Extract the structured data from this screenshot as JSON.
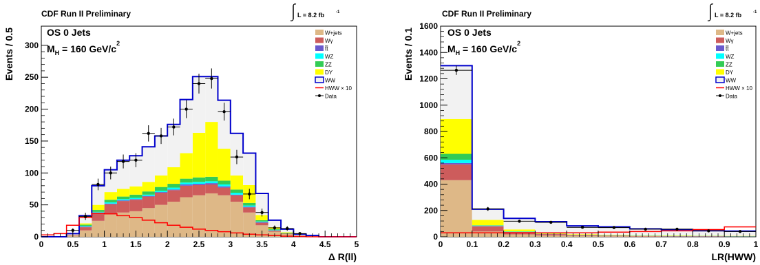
{
  "header": {
    "experiment": "CDF Run II Preliminary",
    "luminosity": "L = 8.2 fb"
  },
  "colors": {
    "W+jets": "#deb887",
    "Wγ": "#cd5c5c",
    "tt": "#6a5acd",
    "WZ": "#00ffff",
    "ZZ": "#33cc55",
    "DY": "#ffff00",
    "WW_fill": "#f2f2f2",
    "WW_line": "#0000cc",
    "HWW": "#ff0000",
    "Data": "#000000"
  },
  "chart_data": [
    {
      "type": "bar",
      "title": "OS 0 Jets",
      "subtitle": "M_H = 160 GeV/c^2",
      "xlabel": "Δ R(ll)",
      "ylabel": "Events / 0.5",
      "xlim": [
        0,
        5
      ],
      "ylim": [
        0,
        330
      ],
      "xticks": [
        0,
        0.5,
        1,
        1.5,
        2,
        2.5,
        3,
        3.5,
        4,
        4.5,
        5
      ],
      "yticks": [
        0,
        50,
        100,
        150,
        200,
        250,
        300
      ],
      "bin_edges": [
        0,
        0.2,
        0.4,
        0.6,
        0.8,
        1.0,
        1.2,
        1.4,
        1.6,
        1.8,
        2.0,
        2.2,
        2.4,
        2.6,
        2.8,
        3.0,
        3.2,
        3.4,
        3.6,
        3.8,
        4.0,
        4.2,
        4.4,
        4.6,
        4.8,
        5.0
      ],
      "stacked": [
        {
          "name": "W+jets",
          "values": [
            0,
            0,
            2,
            10,
            25,
            35,
            38,
            40,
            45,
            50,
            55,
            62,
            65,
            68,
            65,
            55,
            38,
            18,
            8,
            4,
            2,
            1,
            0,
            0,
            0
          ]
        },
        {
          "name": "Wγ",
          "values": [
            0,
            0,
            1,
            5,
            12,
            16,
            18,
            18,
            18,
            19,
            18,
            18,
            16,
            14,
            12,
            10,
            8,
            4,
            2,
            1,
            0,
            0,
            0,
            0,
            0
          ]
        },
        {
          "name": "tt",
          "values": [
            0,
            0,
            0,
            1,
            1,
            1,
            1,
            1,
            1,
            1,
            1,
            2,
            2,
            2,
            2,
            1,
            1,
            1,
            0,
            0,
            0,
            0,
            0,
            0,
            0
          ]
        },
        {
          "name": "WZ",
          "values": [
            0,
            0,
            0,
            1,
            1,
            2,
            2,
            2,
            2,
            2,
            3,
            3,
            3,
            3,
            3,
            3,
            2,
            1,
            1,
            0,
            0,
            0,
            0,
            0,
            0
          ]
        },
        {
          "name": "ZZ",
          "values": [
            0,
            0,
            0,
            2,
            3,
            4,
            4,
            5,
            5,
            6,
            6,
            6,
            7,
            7,
            6,
            5,
            4,
            2,
            1,
            1,
            0,
            0,
            0,
            0,
            0
          ]
        },
        {
          "name": "DY",
          "values": [
            0,
            0,
            0,
            2,
            8,
            12,
            12,
            13,
            15,
            18,
            26,
            40,
            70,
            86,
            50,
            22,
            28,
            8,
            3,
            1,
            0,
            0,
            0,
            0,
            0
          ]
        },
        {
          "name": "WW",
          "values": [
            0,
            0,
            2,
            12,
            30,
            35,
            45,
            48,
            55,
            62,
            67,
            84,
            88,
            71,
            76,
            66,
            50,
            34,
            11,
            5,
            2,
            1,
            0,
            0,
            0
          ]
        }
      ],
      "hww_x10": [
        3,
        5,
        18,
        30,
        37,
        36,
        33,
        30,
        26,
        22,
        18,
        15,
        12,
        10,
        8,
        6,
        4,
        3,
        2,
        1,
        0.5,
        0,
        0,
        0,
        0
      ],
      "data": {
        "x": [
          0.5,
          0.7,
          0.9,
          1.1,
          1.3,
          1.5,
          1.7,
          1.9,
          2.1,
          2.3,
          2.5,
          2.7,
          2.9,
          3.1,
          3.3,
          3.5,
          3.7,
          3.9,
          4.1
        ],
        "y": [
          10,
          32,
          82,
          100,
          118,
          120,
          162,
          158,
          172,
          200,
          240,
          248,
          196,
          125,
          67,
          38,
          14,
          13,
          5
        ]
      },
      "legend": [
        "W+jets",
        "Wγ",
        "tt",
        "WZ",
        "ZZ",
        "DY",
        "WW",
        "HWW × 10",
        "Data"
      ],
      "legend_position": "top-right"
    },
    {
      "type": "bar",
      "title": "OS 0 Jets",
      "subtitle": "M_H = 160 GeV/c^2",
      "xlabel": "LR(HWW)",
      "ylabel": "Events / 0.1",
      "xlim": [
        0,
        1
      ],
      "ylim": [
        0,
        1600
      ],
      "xticks": [
        0,
        0.1,
        0.2,
        0.3,
        0.4,
        0.5,
        0.6,
        0.7,
        0.8,
        0.9,
        1
      ],
      "yticks": [
        0,
        200,
        400,
        600,
        800,
        1000,
        1200,
        1400,
        1600
      ],
      "bin_edges": [
        0,
        0.1,
        0.2,
        0.3,
        0.4,
        0.5,
        0.6,
        0.7,
        0.8,
        0.9,
        1.0
      ],
      "stacked": [
        {
          "name": "W+jets",
          "values": [
            430,
            40,
            18,
            10,
            6,
            4,
            3,
            2,
            2,
            1
          ]
        },
        {
          "name": "Wγ",
          "values": [
            120,
            40,
            18,
            10,
            6,
            4,
            3,
            2,
            2,
            1
          ]
        },
        {
          "name": "tt",
          "values": [
            10,
            2,
            1,
            1,
            1,
            1,
            1,
            1,
            1,
            1
          ]
        },
        {
          "name": "WZ",
          "values": [
            25,
            3,
            2,
            1,
            1,
            1,
            1,
            1,
            1,
            1
          ]
        },
        {
          "name": "ZZ",
          "values": [
            45,
            3,
            2,
            1,
            1,
            1,
            1,
            1,
            1,
            1
          ]
        },
        {
          "name": "DY",
          "values": [
            265,
            40,
            15,
            8,
            5,
            4,
            3,
            3,
            2,
            2
          ]
        },
        {
          "name": "WW",
          "values": [
            405,
            82,
            84,
            84,
            63,
            60,
            48,
            45,
            37,
            36
          ]
        }
      ],
      "hww_x10": [
        30,
        30,
        30,
        30,
        30,
        35,
        40,
        45,
        55,
        75
      ],
      "data": {
        "x": [
          0.05,
          0.15,
          0.25,
          0.35,
          0.45,
          0.55,
          0.65,
          0.75,
          0.85,
          0.95
        ],
        "y": [
          1265,
          212,
          118,
          110,
          72,
          70,
          58,
          58,
          45,
          40
        ]
      },
      "legend": [
        "W+jets",
        "Wγ",
        "tt",
        "WZ",
        "ZZ",
        "DY",
        "WW",
        "HWW × 10",
        "Data"
      ],
      "legend_position": "top-right"
    }
  ]
}
